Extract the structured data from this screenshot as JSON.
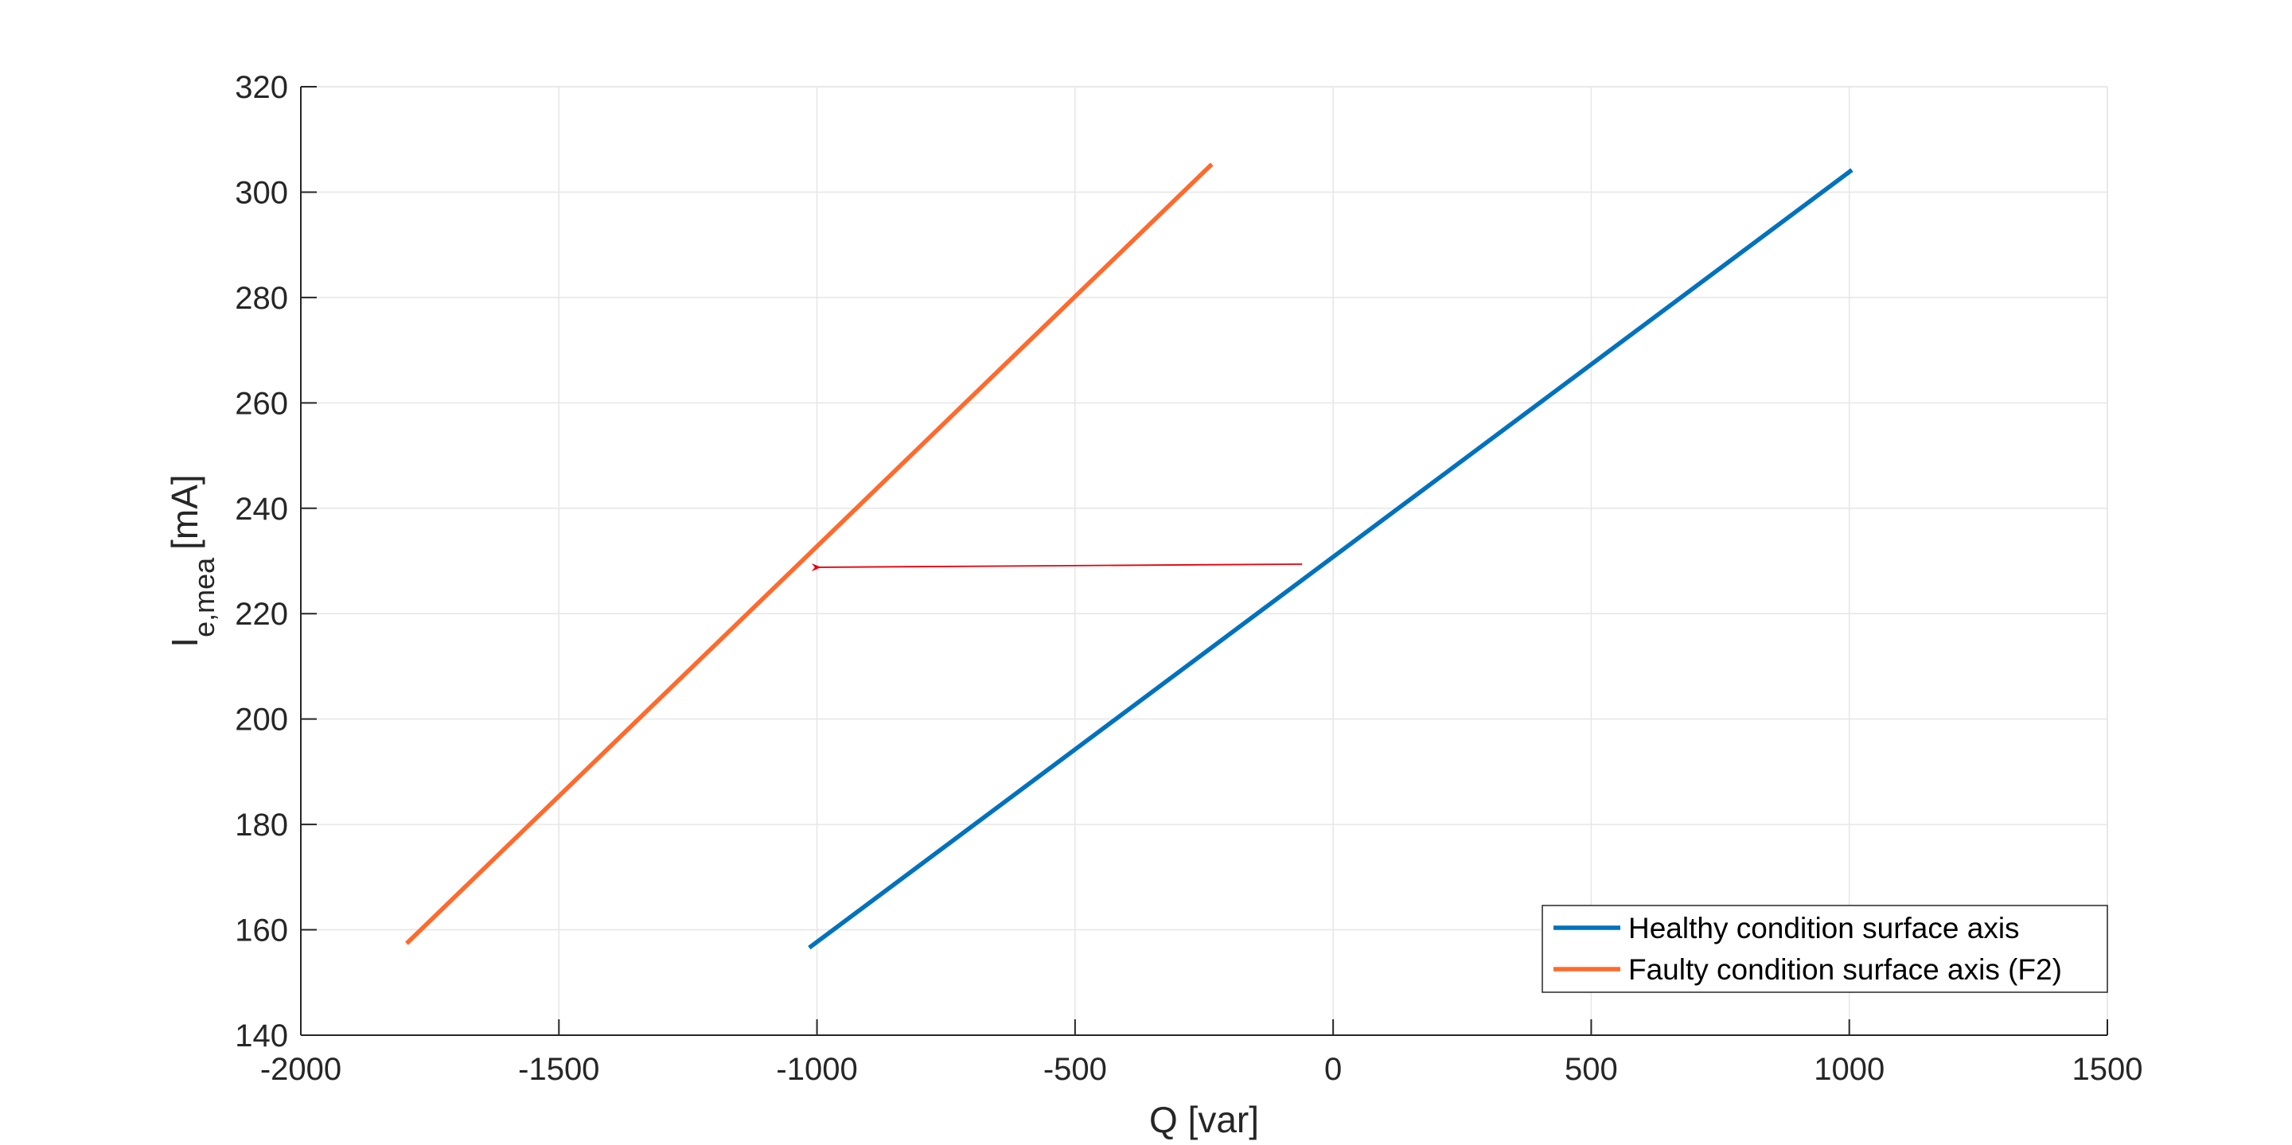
{
  "chart_data": {
    "type": "line",
    "xlabel": "Q [var]",
    "ylabel": {
      "main": "I",
      "subscript": "e,mea",
      "unit": "[mA]"
    },
    "xlim": [
      -2000,
      1500
    ],
    "ylim": [
      140,
      320
    ],
    "xticks": [
      -2000,
      -1500,
      -1000,
      -500,
      0,
      500,
      1000,
      1500
    ],
    "yticks": [
      140,
      160,
      180,
      200,
      220,
      240,
      260,
      280,
      300,
      320
    ],
    "xtick_labels": [
      "-2000",
      "-1500",
      "-1000",
      "-500",
      "0",
      "500",
      "1000",
      "1500"
    ],
    "ytick_labels": [
      "140",
      "160",
      "180",
      "200",
      "220",
      "240",
      "260",
      "280",
      "300",
      "320"
    ],
    "grid": true,
    "legend_position": "bottom-right",
    "series": [
      {
        "name": "Healthy condition surface axis",
        "color": "#0072BD",
        "x": [
          -1015,
          1005
        ],
        "y": [
          156.6,
          304.2
        ]
      },
      {
        "name": "Faulty condition surface axis (F2)",
        "color": "#FF6A2C",
        "x": [
          -1795,
          -235
        ],
        "y": [
          157.4,
          305.3
        ]
      }
    ],
    "annotations": [
      {
        "type": "arrow",
        "color": "#E8000B",
        "from": [
          -60,
          229.4
        ],
        "to": [
          -995,
          228.8
        ]
      }
    ]
  }
}
